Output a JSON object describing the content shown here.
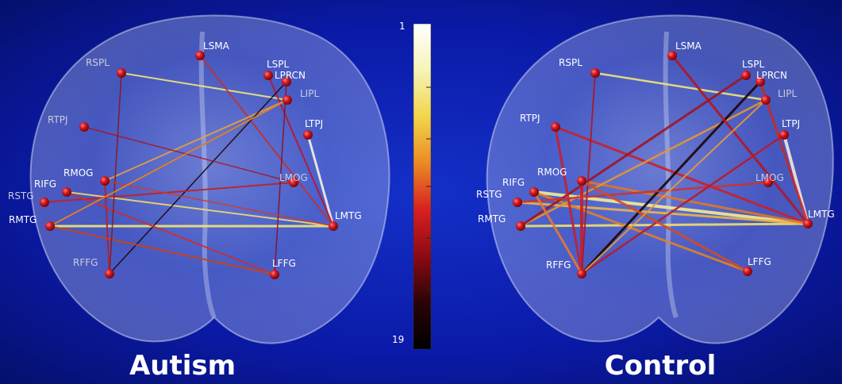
{
  "panels": [
    {
      "id": "autism",
      "title": "Autism",
      "nodes": [
        {
          "name": "LSMA",
          "dim": false
        },
        {
          "name": "RSPL",
          "dim": true
        },
        {
          "name": "LSPL",
          "dim": false
        },
        {
          "name": "LPRCN",
          "dim": false
        },
        {
          "name": "LIPL",
          "dim": true
        },
        {
          "name": "RTPJ",
          "dim": true
        },
        {
          "name": "LTPJ",
          "dim": false
        },
        {
          "name": "RMOG",
          "dim": false
        },
        {
          "name": "RIFG",
          "dim": false
        },
        {
          "name": "LMOG",
          "dim": true
        },
        {
          "name": "RSTG",
          "dim": true
        },
        {
          "name": "RMTG",
          "dim": false
        },
        {
          "name": "LMTG",
          "dim": false
        },
        {
          "name": "RFFG",
          "dim": true
        },
        {
          "name": "LFFG",
          "dim": false
        }
      ],
      "edges": [
        {
          "from": "RSPL",
          "to": "LIPL",
          "color": "#f1e77a",
          "width": 2
        },
        {
          "from": "RMTG",
          "to": "LMTG",
          "color": "#f1e77a",
          "width": 3
        },
        {
          "from": "RIFG",
          "to": "LMTG",
          "color": "#f0dc6a",
          "width": 2
        },
        {
          "from": "LTPJ",
          "to": "LMTG",
          "color": "#f7efe2",
          "width": 3
        },
        {
          "from": "LSPL",
          "to": "LMTG",
          "color": "#b8162a",
          "width": 2
        },
        {
          "from": "LSMA",
          "to": "LMTG",
          "color": "#c23030",
          "width": 2
        },
        {
          "from": "RMOG",
          "to": "LIPL",
          "color": "#e8a040",
          "width": 2
        },
        {
          "from": "RMTG",
          "to": "LIPL",
          "color": "#b86a2a",
          "width": 2
        },
        {
          "from": "RFFG",
          "to": "LPRCN",
          "color": "#1a0608",
          "width": 1.5
        },
        {
          "from": "RSTG",
          "to": "LMOG",
          "color": "#c02020",
          "width": 2
        },
        {
          "from": "RFFG",
          "to": "RMOG",
          "color": "#b81d2c",
          "width": 2
        },
        {
          "from": "RTPJ",
          "to": "LMOG",
          "color": "#a41a28",
          "width": 1.5
        },
        {
          "from": "RIFG",
          "to": "LFFG",
          "color": "#c83030",
          "width": 2
        },
        {
          "from": "RMTG",
          "to": "LFFG",
          "color": "#d04010",
          "width": 2
        },
        {
          "from": "LPRCN",
          "to": "LFFG",
          "color": "#8a1020",
          "width": 1.5
        },
        {
          "from": "RSPL",
          "to": "RFFG",
          "color": "#8c1420",
          "width": 1.5
        },
        {
          "from": "RMOG",
          "to": "LMTG",
          "color": "#d03a2a",
          "width": 1.5
        },
        {
          "from": "LIPL",
          "to": "RMTG",
          "color": "#e68a2e",
          "width": 1.5
        }
      ]
    },
    {
      "id": "control",
      "title": "Control",
      "nodes": [
        {
          "name": "LSMA",
          "dim": false
        },
        {
          "name": "RSPL",
          "dim": false
        },
        {
          "name": "LSPL",
          "dim": false
        },
        {
          "name": "LPRCN",
          "dim": false
        },
        {
          "name": "LIPL",
          "dim": true
        },
        {
          "name": "RTPJ",
          "dim": false
        },
        {
          "name": "LTPJ",
          "dim": false
        },
        {
          "name": "RMOG",
          "dim": false
        },
        {
          "name": "RIFG",
          "dim": false
        },
        {
          "name": "LMOG",
          "dim": true
        },
        {
          "name": "RSTG",
          "dim": false
        },
        {
          "name": "RMTG",
          "dim": false
        },
        {
          "name": "LMTG",
          "dim": false
        },
        {
          "name": "RFFG",
          "dim": false
        },
        {
          "name": "LFFG",
          "dim": false
        }
      ],
      "edges": [
        {
          "from": "RSPL",
          "to": "LIPL",
          "color": "#f1e77a",
          "width": 2.5
        },
        {
          "from": "RIFG",
          "to": "LMTG",
          "color": "#f3ec92",
          "width": 4
        },
        {
          "from": "RMTG",
          "to": "LMTG",
          "color": "#f1e06a",
          "width": 3
        },
        {
          "from": "RSTG",
          "to": "LMTG",
          "color": "#e8b44a",
          "width": 3
        },
        {
          "from": "LTPJ",
          "to": "LMTG",
          "color": "#f3e7dc",
          "width": 4
        },
        {
          "from": "RTPJ",
          "to": "LMTG",
          "color": "#c8202c",
          "width": 3
        },
        {
          "from": "RMOG",
          "to": "LMTG",
          "color": "#e0762a",
          "width": 3
        },
        {
          "from": "RIFG",
          "to": "LFFG",
          "color": "#e08028",
          "width": 3
        },
        {
          "from": "RMTG",
          "to": "LIPL",
          "color": "#e8962e",
          "width": 2.5
        },
        {
          "from": "RFFG",
          "to": "LPRCN",
          "color": "#1c0608",
          "width": 3
        },
        {
          "from": "LSMA",
          "to": "LMTG",
          "color": "#b01628",
          "width": 3
        },
        {
          "from": "LSPL",
          "to": "RMTG",
          "color": "#a01424",
          "width": 3
        },
        {
          "from": "RMOG",
          "to": "RFFG",
          "color": "#c81e2a",
          "width": 4
        },
        {
          "from": "RSPL",
          "to": "RFFG",
          "color": "#a81828",
          "width": 2
        },
        {
          "from": "RTPJ",
          "to": "RFFG",
          "color": "#c42030",
          "width": 3
        },
        {
          "from": "RSTG",
          "to": "LMOG",
          "color": "#d0302a",
          "width": 2.5
        },
        {
          "from": "LPRCN",
          "to": "LMTG",
          "color": "#c42a2a",
          "width": 3
        },
        {
          "from": "RFFG",
          "to": "LTPJ",
          "color": "#b81a28",
          "width": 2.5
        },
        {
          "from": "RMOG",
          "to": "LFFG",
          "color": "#d04a2a",
          "width": 3
        },
        {
          "from": "RIFG",
          "to": "RFFG",
          "color": "#e8782e",
          "width": 3
        },
        {
          "from": "LIPL",
          "to": "RFFG",
          "color": "#e89a3a",
          "width": 2
        }
      ]
    }
  ],
  "colorbar": {
    "top_label": "1",
    "bottom_label": "19",
    "stops": [
      "#ffffff",
      "#f7f3b8",
      "#f2d54a",
      "#ea8a24",
      "#d82020",
      "#8c0a14",
      "#2a0406",
      "#000000"
    ]
  },
  "colors": {
    "background": "#0b1aa8",
    "background_edge": "#05106e",
    "node": "#c8161e"
  }
}
